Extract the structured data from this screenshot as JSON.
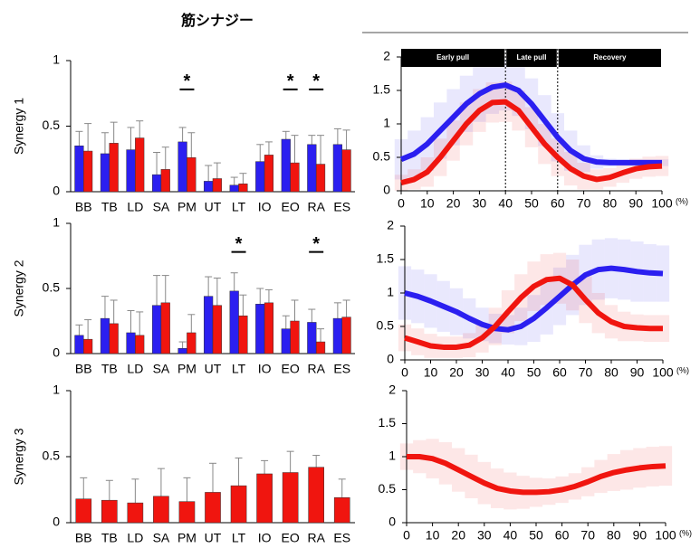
{
  "title": "筋シナジー",
  "chart_data": [
    {
      "type": "bar",
      "ylabel": "Synergy 1",
      "categories": [
        "BB",
        "TB",
        "LD",
        "SA",
        "PM",
        "UT",
        "LT",
        "IO",
        "EO",
        "RA",
        "ES"
      ],
      "ylim": [
        0,
        1
      ],
      "yticks": [
        0,
        0.5,
        1
      ],
      "series": [
        {
          "color": "#2b1ff0",
          "values": [
            0.35,
            0.29,
            0.32,
            0.13,
            0.38,
            0.08,
            0.05,
            0.23,
            0.4,
            0.36,
            0.36
          ],
          "errors": [
            0.11,
            0.16,
            0.17,
            0.17,
            0.11,
            0.12,
            0.06,
            0.13,
            0.06,
            0.07,
            0.12
          ]
        },
        {
          "color": "#f0150f",
          "values": [
            0.31,
            0.37,
            0.41,
            0.17,
            0.26,
            0.1,
            0.06,
            0.28,
            0.22,
            0.21,
            0.32
          ],
          "errors": [
            0.21,
            0.16,
            0.13,
            0.17,
            0.19,
            0.12,
            0.08,
            0.1,
            0.21,
            0.22,
            0.15
          ]
        }
      ],
      "annotations": [
        {
          "text": "*",
          "category": "PM"
        },
        {
          "text": "*",
          "category": "EO"
        },
        {
          "text": "*",
          "category": "RA"
        }
      ]
    },
    {
      "type": "line",
      "xlabel": "(%)",
      "x": [
        0,
        5,
        10,
        15,
        20,
        25,
        30,
        35,
        40,
        45,
        50,
        55,
        60,
        65,
        70,
        75,
        80,
        85,
        90,
        95,
        100
      ],
      "xlim": [
        0,
        100
      ],
      "xticks": [
        0,
        10,
        20,
        30,
        40,
        50,
        60,
        70,
        80,
        90,
        100
      ],
      "ylim": [
        0,
        2
      ],
      "yticks": [
        0,
        0.5,
        1,
        1.5,
        2
      ],
      "series": [
        {
          "color": "#2b1ff0",
          "values": [
            0.47,
            0.55,
            0.7,
            0.9,
            1.1,
            1.3,
            1.45,
            1.55,
            1.58,
            1.5,
            1.3,
            1.05,
            0.8,
            0.6,
            0.48,
            0.43,
            0.42,
            0.42,
            0.42,
            0.42,
            0.42
          ],
          "errors": [
            0.3,
            0.35,
            0.4,
            0.42,
            0.42,
            0.42,
            0.42,
            0.4,
            0.38,
            0.38,
            0.38,
            0.38,
            0.36,
            0.3,
            0.2,
            0.1,
            0.06,
            0.05,
            0.05,
            0.05,
            0.05
          ]
        },
        {
          "color": "#f0150f",
          "values": [
            0.12,
            0.17,
            0.28,
            0.5,
            0.75,
            1.0,
            1.2,
            1.32,
            1.33,
            1.2,
            0.95,
            0.7,
            0.5,
            0.33,
            0.22,
            0.17,
            0.2,
            0.27,
            0.33,
            0.36,
            0.37
          ],
          "errors": [
            0.12,
            0.15,
            0.22,
            0.28,
            0.3,
            0.32,
            0.32,
            0.3,
            0.3,
            0.3,
            0.3,
            0.3,
            0.28,
            0.25,
            0.2,
            0.15,
            0.14,
            0.15,
            0.15,
            0.15,
            0.15
          ]
        }
      ],
      "phases": [
        {
          "label": "Early pull",
          "start": 0,
          "end": 40
        },
        {
          "label": "Late pull",
          "start": 40,
          "end": 60
        },
        {
          "label": "Recovery",
          "start": 60,
          "end": 100
        }
      ],
      "vlines": [
        40,
        60
      ]
    },
    {
      "type": "bar",
      "ylabel": "Synergy 2",
      "categories": [
        "BB",
        "TB",
        "LD",
        "SA",
        "PM",
        "UT",
        "LT",
        "IO",
        "EO",
        "RA",
        "ES"
      ],
      "ylim": [
        0,
        1
      ],
      "yticks": [
        0,
        0.5,
        1
      ],
      "series": [
        {
          "color": "#2b1ff0",
          "values": [
            0.14,
            0.27,
            0.16,
            0.37,
            0.04,
            0.44,
            0.48,
            0.38,
            0.19,
            0.24,
            0.27
          ],
          "errors": [
            0.08,
            0.17,
            0.17,
            0.23,
            0.05,
            0.15,
            0.14,
            0.12,
            0.1,
            0.1,
            0.12
          ]
        },
        {
          "color": "#f0150f",
          "values": [
            0.11,
            0.23,
            0.14,
            0.39,
            0.16,
            0.37,
            0.29,
            0.39,
            0.25,
            0.09,
            0.28
          ],
          "errors": [
            0.15,
            0.18,
            0.18,
            0.21,
            0.14,
            0.21,
            0.16,
            0.1,
            0.16,
            0.1,
            0.13
          ]
        }
      ],
      "annotations": [
        {
          "text": "*",
          "category": "LT"
        },
        {
          "text": "*",
          "category": "RA"
        }
      ]
    },
    {
      "type": "line",
      "xlabel": "(%)",
      "x": [
        0,
        5,
        10,
        15,
        20,
        25,
        30,
        35,
        40,
        45,
        50,
        55,
        60,
        65,
        70,
        75,
        80,
        85,
        90,
        95,
        100
      ],
      "xlim": [
        0,
        100
      ],
      "xticks": [
        0,
        10,
        20,
        30,
        40,
        50,
        60,
        70,
        80,
        90,
        100
      ],
      "ylim": [
        0,
        2
      ],
      "yticks": [
        0,
        0.5,
        1,
        1.5,
        2
      ],
      "series": [
        {
          "color": "#2b1ff0",
          "values": [
            1.0,
            0.95,
            0.88,
            0.8,
            0.72,
            0.62,
            0.53,
            0.47,
            0.45,
            0.5,
            0.62,
            0.78,
            0.95,
            1.12,
            1.27,
            1.35,
            1.37,
            1.35,
            1.32,
            1.3,
            1.29
          ],
          "errors": [
            0.4,
            0.4,
            0.4,
            0.38,
            0.35,
            0.3,
            0.25,
            0.22,
            0.22,
            0.28,
            0.35,
            0.4,
            0.43,
            0.45,
            0.45,
            0.45,
            0.45,
            0.45,
            0.45,
            0.43,
            0.42
          ]
        },
        {
          "color": "#f0150f",
          "values": [
            0.33,
            0.27,
            0.21,
            0.19,
            0.19,
            0.22,
            0.33,
            0.5,
            0.72,
            0.93,
            1.1,
            1.2,
            1.22,
            1.12,
            0.9,
            0.7,
            0.57,
            0.5,
            0.48,
            0.47,
            0.47
          ],
          "errors": [
            0.2,
            0.2,
            0.18,
            0.16,
            0.16,
            0.18,
            0.22,
            0.28,
            0.32,
            0.35,
            0.37,
            0.38,
            0.38,
            0.38,
            0.35,
            0.3,
            0.25,
            0.22,
            0.2,
            0.2,
            0.2
          ]
        }
      ]
    },
    {
      "type": "bar",
      "ylabel": "Synergy 3",
      "categories": [
        "BB",
        "TB",
        "LD",
        "SA",
        "PM",
        "UT",
        "LT",
        "IO",
        "EO",
        "RA",
        "ES"
      ],
      "ylim": [
        0,
        1
      ],
      "yticks": [
        0,
        0.5,
        1
      ],
      "series": [
        {
          "color": "#f0150f",
          "values": [
            0.18,
            0.17,
            0.15,
            0.2,
            0.16,
            0.23,
            0.28,
            0.37,
            0.38,
            0.42,
            0.19
          ],
          "errors": [
            0.16,
            0.15,
            0.18,
            0.21,
            0.18,
            0.22,
            0.21,
            0.1,
            0.16,
            0.09,
            0.14
          ]
        }
      ]
    },
    {
      "type": "line",
      "xlabel": "(%)",
      "x": [
        0,
        5,
        10,
        15,
        20,
        25,
        30,
        35,
        40,
        45,
        50,
        55,
        60,
        65,
        70,
        75,
        80,
        85,
        90,
        95,
        100
      ],
      "xlim": [
        0,
        100
      ],
      "xticks": [
        0,
        10,
        20,
        30,
        40,
        50,
        60,
        70,
        80,
        90,
        100
      ],
      "ylim": [
        0,
        2
      ],
      "yticks": [
        0,
        0.5,
        1,
        1.5,
        2
      ],
      "series": [
        {
          "color": "#f0150f",
          "values": [
            1.0,
            1.0,
            0.97,
            0.9,
            0.8,
            0.7,
            0.6,
            0.52,
            0.48,
            0.46,
            0.46,
            0.47,
            0.5,
            0.55,
            0.62,
            0.7,
            0.76,
            0.8,
            0.83,
            0.85,
            0.86
          ],
          "errors": [
            0.2,
            0.25,
            0.3,
            0.32,
            0.33,
            0.33,
            0.32,
            0.3,
            0.28,
            0.25,
            0.22,
            0.2,
            0.2,
            0.2,
            0.22,
            0.25,
            0.28,
            0.3,
            0.3,
            0.3,
            0.3
          ]
        }
      ]
    }
  ]
}
